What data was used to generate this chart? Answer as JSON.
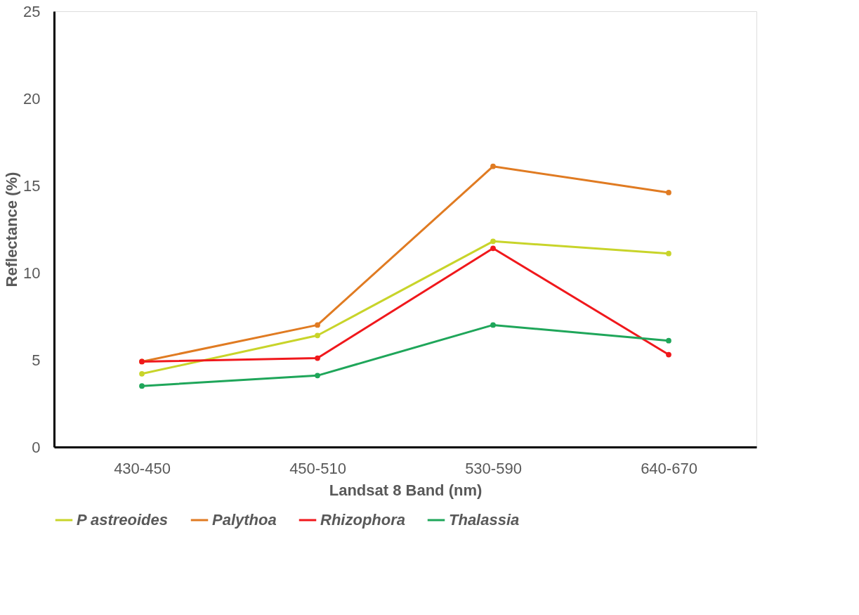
{
  "chart_data": {
    "type": "line",
    "xlabel": "Landsat 8 Band (nm)",
    "ylabel": "Reflectance (%)",
    "categories": [
      "430-450",
      "450-510",
      "530-590",
      "640-670"
    ],
    "series": [
      {
        "name": "P astreoides",
        "color": "#c8d42a",
        "values": [
          4.2,
          6.4,
          11.8,
          11.1
        ]
      },
      {
        "name": "Palythoa",
        "color": "#e07b22",
        "values": [
          4.9,
          7.0,
          16.1,
          14.6
        ]
      },
      {
        "name": "Rhizophora",
        "color": "#f0181c",
        "values": [
          4.9,
          5.1,
          11.4,
          5.3
        ]
      },
      {
        "name": "Thalassia",
        "color": "#1fa65a",
        "values": [
          3.5,
          4.1,
          7.0,
          6.1
        ]
      }
    ],
    "ylim": [
      0,
      25
    ],
    "yticks": [
      0,
      5,
      10,
      15,
      20,
      25
    ],
    "grid": false,
    "legend": "bottom",
    "marker": "circle",
    "line_style": "solid"
  }
}
